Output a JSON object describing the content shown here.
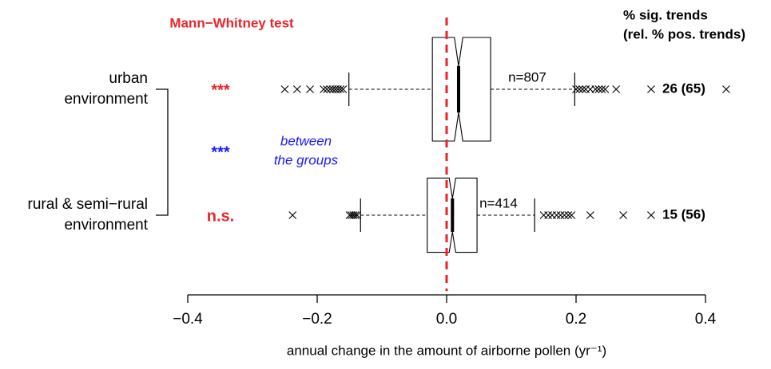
{
  "chart_data": {
    "type": "box",
    "orientation": "horizontal",
    "notched": true,
    "title": "Mann−Whitney test",
    "title_color": "#e8262a",
    "right_header": [
      "% sig. trends",
      "(rel. % pos. trends)"
    ],
    "xlabel": "annual change in the amount of airborne pollen (yr⁻¹)",
    "xlim": [
      -0.4,
      0.4
    ],
    "xticks": [
      {
        "value": -0.4,
        "label": "−0.4"
      },
      {
        "value": -0.2,
        "label": "−0.2"
      },
      {
        "value": 0,
        "label": "0.0"
      },
      0.2,
      0.4
    ],
    "reference_line": {
      "value": 0,
      "color": "#e8262a"
    },
    "between_groups": {
      "sig_label": "***",
      "color": "#1a1aff",
      "text": [
        "between",
        "the groups"
      ]
    },
    "series": [
      {
        "name": [
          "urban",
          "environment"
        ],
        "q1": -0.022,
        "median": 0.0185,
        "q3": 0.068,
        "notch_low": 0.012,
        "notch_high": 0.025,
        "whisker_low": -0.151,
        "whisker_high": 0.198,
        "n": 807,
        "n_label": "n=807",
        "outliers": [
          -0.25,
          -0.231,
          -0.211,
          -0.19,
          -0.185,
          -0.18,
          -0.176,
          -0.172,
          -0.168,
          -0.164,
          -0.16,
          0.2,
          0.205,
          0.21,
          0.215,
          0.222,
          0.23,
          0.235,
          0.24,
          0.245,
          0.262,
          0.316,
          0.432
        ],
        "sig_label": "***",
        "sig_color": "#e8262a",
        "trend_label": "26 (65)"
      },
      {
        "name": [
          "rural & semi−rural",
          "environment"
        ],
        "q1": -0.03,
        "median": 0.009,
        "q3": 0.047,
        "notch_low": 0.004,
        "notch_high": 0.014,
        "whisker_low": -0.133,
        "whisker_high": 0.136,
        "n": 414,
        "n_label": "n=414",
        "outliers": [
          -0.238,
          -0.15,
          -0.147,
          -0.144,
          -0.141,
          -0.138,
          0.15,
          0.157,
          0.163,
          0.17,
          0.176,
          0.182,
          0.188,
          0.193,
          0.222,
          0.273,
          0.316
        ],
        "sig_label": "n.s.",
        "sig_color": "#e8262a",
        "trend_label": "15 (56)"
      }
    ]
  }
}
